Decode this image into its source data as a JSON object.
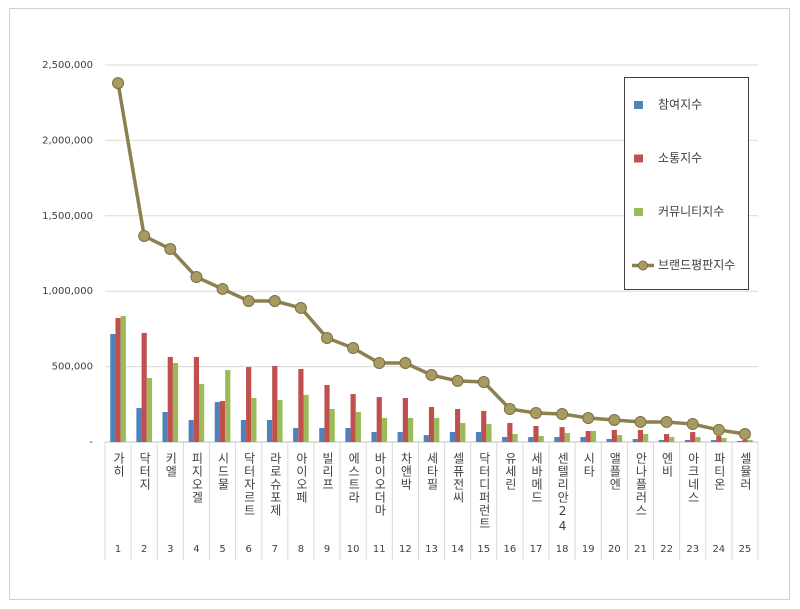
{
  "chart_data": {
    "type": "bar",
    "categories": [
      "가히",
      "닥터지",
      "키엘",
      "피지오겔",
      "시드물",
      "닥터자르트",
      "라로슈포제",
      "아이오페",
      "빌리프",
      "에스트라",
      "바이오더마",
      "차앤박",
      "세타필",
      "셀퓨전씨",
      "닥터디퍼런트",
      "유세린",
      "세바메드",
      "센텔리안24",
      "시타",
      "앨플엔",
      "안나플러스",
      "엔비",
      "아크네스",
      "파티온",
      "셀뮬러"
    ],
    "ranks": [
      1,
      2,
      3,
      4,
      5,
      6,
      7,
      8,
      9,
      10,
      11,
      12,
      13,
      14,
      15,
      16,
      17,
      18,
      19,
      20,
      21,
      22,
      23,
      24,
      25
    ],
    "series": [
      {
        "name": "참여지수",
        "type": "bar",
        "color": "#4f81bd",
        "values": [
          716000,
          225000,
          199000,
          146000,
          265000,
          146000,
          146000,
          93000,
          93000,
          93000,
          66000,
          66000,
          46000,
          66000,
          66000,
          33000,
          33000,
          33000,
          33000,
          20000,
          20000,
          13000,
          13000,
          13000,
          7000
        ]
      },
      {
        "name": "소통지수",
        "type": "bar",
        "color": "#c0504d",
        "values": [
          822000,
          723000,
          564000,
          564000,
          272000,
          497000,
          504000,
          484000,
          378000,
          318000,
          298000,
          292000,
          232000,
          219000,
          206000,
          126000,
          106000,
          99000,
          73000,
          80000,
          80000,
          53000,
          66000,
          40000,
          13000
        ]
      },
      {
        "name": "커뮤니티지수",
        "type": "bar",
        "color": "#9bbb59",
        "values": [
          836000,
          424000,
          524000,
          385000,
          477000,
          292000,
          279000,
          312000,
          219000,
          199000,
          159000,
          159000,
          159000,
          126000,
          119000,
          53000,
          40000,
          60000,
          73000,
          46000,
          53000,
          33000,
          33000,
          27000,
          13000
        ]
      },
      {
        "name": "브랜드평판지수",
        "type": "line",
        "color": "#8c8050",
        "values": [
          2380000,
          1366000,
          1280000,
          1094000,
          1015000,
          935000,
          935000,
          889000,
          690000,
          623000,
          524000,
          524000,
          444000,
          405000,
          398000,
          219000,
          192000,
          186000,
          159000,
          146000,
          133000,
          133000,
          119000,
          80000,
          53000
        ]
      }
    ],
    "ylim": [
      0,
      2500000
    ],
    "yticks": [
      {
        "value": 0,
        "label": "-"
      },
      {
        "value": 500000,
        "label": "500,000"
      },
      {
        "value": 1000000,
        "label": "1,000,000"
      },
      {
        "value": 1500000,
        "label": "1,500,000"
      },
      {
        "value": 2000000,
        "label": "2,000,000"
      },
      {
        "value": 2500000,
        "label": "2,500,000"
      }
    ],
    "grid": true,
    "legend": "right"
  }
}
